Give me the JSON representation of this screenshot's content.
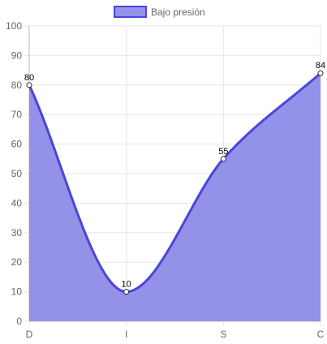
{
  "chart_data": {
    "type": "area",
    "categories": [
      "D",
      "I",
      "S",
      "C"
    ],
    "series": [
      {
        "name": "Bajo presión",
        "values": [
          80,
          10,
          55,
          84
        ]
      }
    ],
    "ylim": [
      0,
      100
    ],
    "yticks": [
      0,
      10,
      20,
      30,
      40,
      50,
      60,
      70,
      80,
      90,
      100
    ],
    "grid": true,
    "legend": "top-center",
    "data_labels": true,
    "colors": {
      "line": "#4b46d8",
      "fill": "#9391e8",
      "legend_fill": "#9391e8",
      "grid": "#e6e6e6",
      "axis": "#bdbdbd",
      "point_fill": "#ffffff",
      "point_stroke": "#2b2b2b"
    }
  }
}
